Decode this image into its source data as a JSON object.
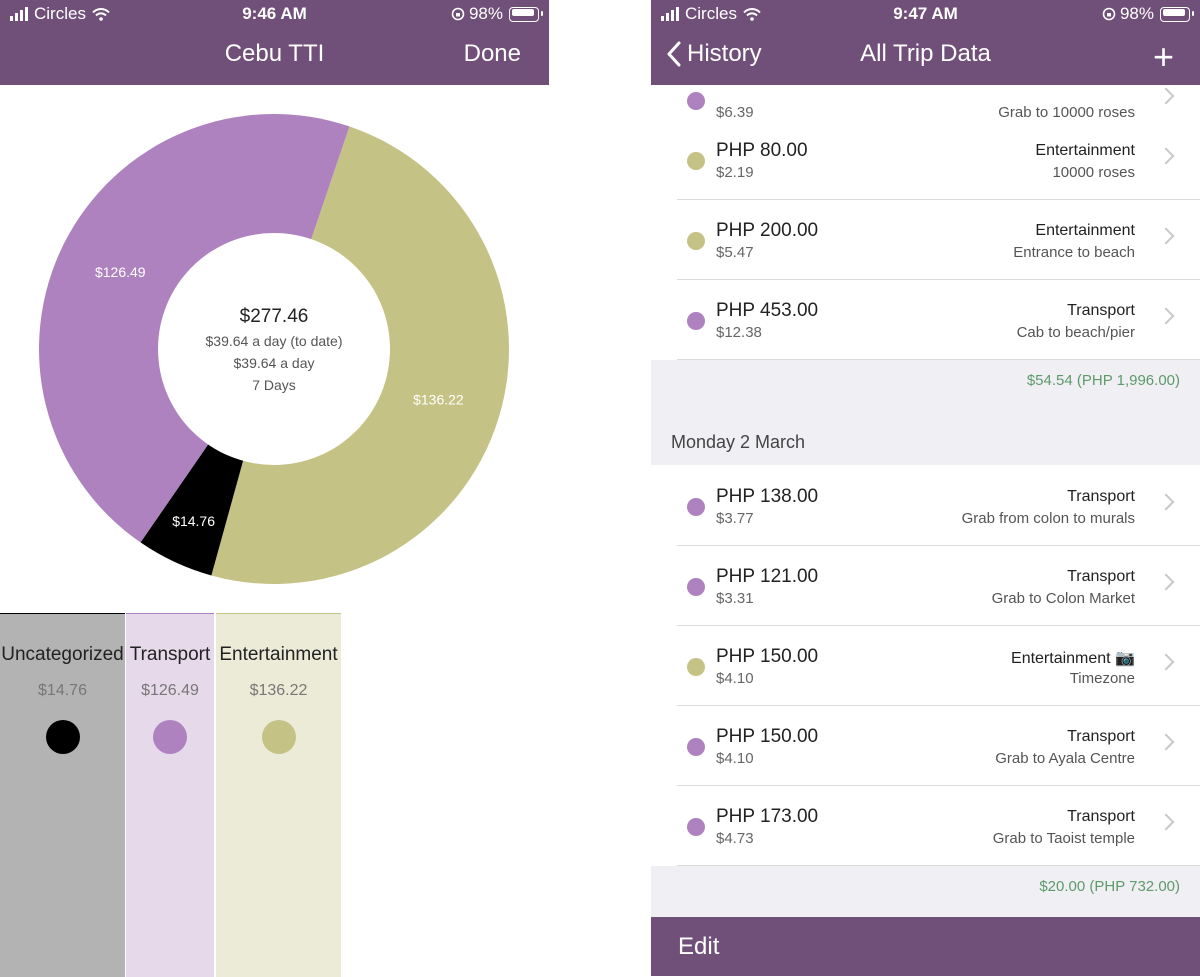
{
  "left": {
    "status": {
      "carrier": "Circles",
      "time": "9:46 AM",
      "battery": "98%"
    },
    "nav": {
      "title": "Cebu TTI",
      "done_label": "Done"
    },
    "summary": {
      "total": "$277.46",
      "per_day_to_date": "$39.64 a day (to date)",
      "per_day": "$39.64 a day",
      "days": "7 Days"
    },
    "legend": [
      {
        "label": "Uncategorized",
        "amount": "$14.76",
        "color": "#000000",
        "bg": "#b3b3b3"
      },
      {
        "label": "Transport",
        "amount": "$126.49",
        "color": "#ad82bf",
        "bg": "#e6d9ea"
      },
      {
        "label": "Entertainment",
        "amount": "$136.22",
        "color": "#c4c284",
        "bg": "#ecebd8"
      }
    ]
  },
  "chart_data": {
    "type": "pie",
    "categories": [
      "Entertainment",
      "Uncategorized",
      "Transport"
    ],
    "values": [
      136.22,
      14.76,
      126.49
    ],
    "labels": [
      "$136.22",
      "$14.76",
      "$126.49"
    ],
    "colors": [
      "#c4c284",
      "#000000",
      "#ad82bf"
    ]
  },
  "right": {
    "status": {
      "carrier": "Circles",
      "time": "9:47 AM",
      "battery": "98%"
    },
    "nav": {
      "back_label": "History",
      "title": "All Trip Data",
      "add_label": "+"
    },
    "partial_row": {
      "usd": "$6.39",
      "desc": "Grab to 10000 roses",
      "color": "#ad82bf"
    },
    "rows_a": [
      {
        "amount": "PHP 80.00",
        "usd": "$2.19",
        "category": "Entertainment",
        "desc": "10000 roses",
        "color": "#c4c284"
      },
      {
        "amount": "PHP 200.00",
        "usd": "$5.47",
        "category": "Entertainment",
        "desc": "Entrance to beach",
        "color": "#c4c284"
      },
      {
        "amount": "PHP 453.00",
        "usd": "$12.38",
        "category": "Transport",
        "desc": "Cab to beach/pier",
        "color": "#ad82bf"
      }
    ],
    "total_a": "$54.54  (PHP 1,996.00)",
    "section_header": "Monday 2 March",
    "rows_b": [
      {
        "amount": "PHP 138.00",
        "usd": "$3.77",
        "category": "Transport",
        "desc": "Grab from colon to murals",
        "color": "#ad82bf"
      },
      {
        "amount": "PHP 121.00",
        "usd": "$3.31",
        "category": "Transport",
        "desc": "Grab to Colon Market",
        "color": "#ad82bf"
      },
      {
        "amount": "PHP 150.00",
        "usd": "$4.10",
        "category": "Entertainment 📷",
        "desc": "Timezone",
        "color": "#c4c284"
      },
      {
        "amount": "PHP 150.00",
        "usd": "$4.10",
        "category": "Transport",
        "desc": "Grab to Ayala Centre",
        "color": "#ad82bf"
      },
      {
        "amount": "PHP 173.00",
        "usd": "$4.73",
        "category": "Transport",
        "desc": "Grab to Taoist temple",
        "color": "#ad82bf"
      }
    ],
    "total_b": "$20.00  (PHP 732.00)",
    "edit_label": "Edit"
  }
}
